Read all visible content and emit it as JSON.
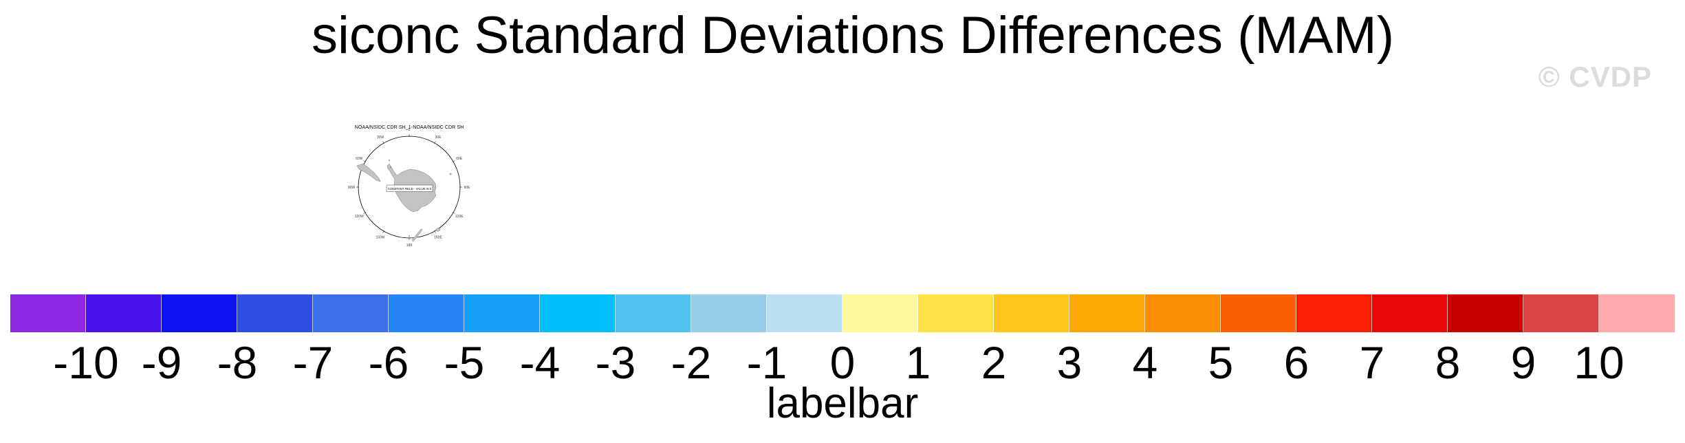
{
  "title": "siconc Standard Deviations Differences (MAM)",
  "watermark": "© CVDP",
  "map": {
    "title": "NOAA/NSIDC CDR SH_1-NOAA/NSIDC CDR SH",
    "note": "CONSTANT FIELD - VALUE IS 0",
    "lon_labels": [
      "0",
      "30E",
      "60E",
      "90E",
      "120E",
      "150E",
      "180",
      "150W",
      "120W",
      "90W",
      "60W",
      "30W"
    ]
  },
  "colorbar": {
    "label": "labelbar",
    "ticks": [
      "-10",
      "-9",
      "-8",
      "-7",
      "-6",
      "-5",
      "-4",
      "-3",
      "-2",
      "-1",
      "0",
      "1",
      "2",
      "3",
      "4",
      "5",
      "6",
      "7",
      "8",
      "9",
      "10"
    ],
    "colors": [
      "#8f26e2",
      "#4713ea",
      "#0d12f0",
      "#2e4fe0",
      "#3a70e8",
      "#2786f5",
      "#16a0fa",
      "#00bffa",
      "#53c3f2",
      "#97cde8",
      "#bbdff2",
      "#fdf89b",
      "#fee345",
      "#ffc71e",
      "#fca702",
      "#fb8d02",
      "#fc5e04",
      "#fb1d06",
      "#e80707",
      "#c80202",
      "#dc4545",
      "#ffabab"
    ]
  },
  "chart_data": {
    "type": "heatmap",
    "title": "siconc Standard Deviations Differences (MAM)",
    "subtitle": "NOAA/NSIDC CDR SH_1-NOAA/NSIDC CDR SH",
    "projection": "south polar stereographic map (Antarctica centered)",
    "variable": "siconc standard deviation difference",
    "season": "MAM",
    "field_note": "CONSTANT FIELD - VALUE IS 0",
    "levels": [
      -10,
      -9,
      -8,
      -7,
      -6,
      -5,
      -4,
      -3,
      -2,
      -1,
      0,
      1,
      2,
      3,
      4,
      5,
      6,
      7,
      8,
      9,
      10
    ],
    "colors": [
      "#8f26e2",
      "#4713ea",
      "#0d12f0",
      "#2e4fe0",
      "#3a70e8",
      "#2786f5",
      "#16a0fa",
      "#00bffa",
      "#53c3f2",
      "#97cde8",
      "#bbdff2",
      "#fdf89b",
      "#fee345",
      "#ffc71e",
      "#fca702",
      "#fb8d02",
      "#fc5e04",
      "#fb1d06",
      "#e80707",
      "#c80202",
      "#dc4545",
      "#ffabab"
    ],
    "colorbar_label": "labelbar",
    "legend_position": "bottom",
    "grid": false,
    "lon_tick_labels": [
      "0",
      "30E",
      "60E",
      "90E",
      "120E",
      "150E",
      "180",
      "150W",
      "120W",
      "90W",
      "60W",
      "30W"
    ]
  }
}
